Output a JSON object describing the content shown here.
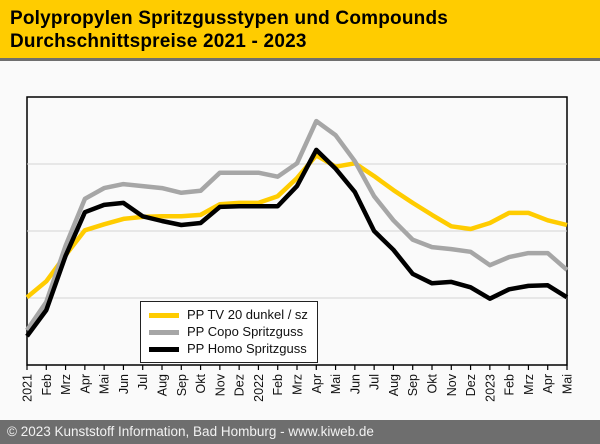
{
  "title": {
    "line1": "Polypropylen Spritzgusstypen und Compounds",
    "line2": "Durchschnittspreise 2021 - 2023"
  },
  "footer": {
    "text": "© 2023 Kunststoff Information, Bad Homburg - www.kiweb.de"
  },
  "colors": {
    "title_bg": "#FFCC00",
    "title_text": "#000000",
    "divider": "#6F6F6F",
    "footer_bg": "#6E6E6E",
    "footer_text": "#F2F2F2",
    "plot_bg": "#FAFAFA",
    "plot_border": "#000000",
    "gridline": "#D4D4D4",
    "tick_label": "#111111"
  },
  "chart_data": {
    "type": "line",
    "title": "",
    "xlabel": "",
    "ylabel": "",
    "y_axis_labels_visible": false,
    "value_scale_note": "y-axis has no printed values; values given in gridline units, 0 = bottom axis, 1 unit per gridline band, 4 = top border",
    "ylim": [
      0,
      4
    ],
    "gridlines": [
      1,
      2,
      3
    ],
    "grid": "horizontal only",
    "legend_position": "inside bottom-left",
    "categories": [
      "2021",
      "Feb",
      "Mrz",
      "Apr",
      "Mai",
      "Jun",
      "Jul",
      "Aug",
      "Sep",
      "Okt",
      "Nov",
      "Dez",
      "2022",
      "Feb",
      "Mrz",
      "Apr",
      "Mai",
      "Jun",
      "Jul",
      "Aug",
      "Sep",
      "Okt",
      "Nov",
      "Dez",
      "2023",
      "Feb",
      "Mrz",
      "Apr",
      "Mai"
    ],
    "series": [
      {
        "name": "PP TV 20 dunkel / sz",
        "color": "#FFCC00",
        "values": [
          1.01,
          1.25,
          1.64,
          2.01,
          2.1,
          2.18,
          2.21,
          2.22,
          2.22,
          2.24,
          2.4,
          2.42,
          2.42,
          2.52,
          2.79,
          3.13,
          2.96,
          3.01,
          2.82,
          2.61,
          2.42,
          2.24,
          2.07,
          2.03,
          2.12,
          2.27,
          2.27,
          2.16,
          2.09
        ]
      },
      {
        "name": "PP Copo Spritzguss",
        "color": "#A6A6A6",
        "values": [
          0.52,
          0.94,
          1.78,
          2.48,
          2.64,
          2.7,
          2.67,
          2.64,
          2.57,
          2.6,
          2.87,
          2.87,
          2.87,
          2.81,
          3.01,
          3.64,
          3.43,
          3.04,
          2.52,
          2.16,
          1.87,
          1.76,
          1.73,
          1.69,
          1.49,
          1.61,
          1.67,
          1.67,
          1.42
        ]
      },
      {
        "name": "PP Homo Spritzguss",
        "color": "#000000",
        "values": [
          0.43,
          0.82,
          1.63,
          2.28,
          2.39,
          2.42,
          2.22,
          2.15,
          2.09,
          2.12,
          2.36,
          2.37,
          2.37,
          2.37,
          2.67,
          3.21,
          2.93,
          2.58,
          2.0,
          1.72,
          1.36,
          1.22,
          1.24,
          1.16,
          0.99,
          1.13,
          1.18,
          1.19,
          1.01
        ]
      }
    ]
  }
}
